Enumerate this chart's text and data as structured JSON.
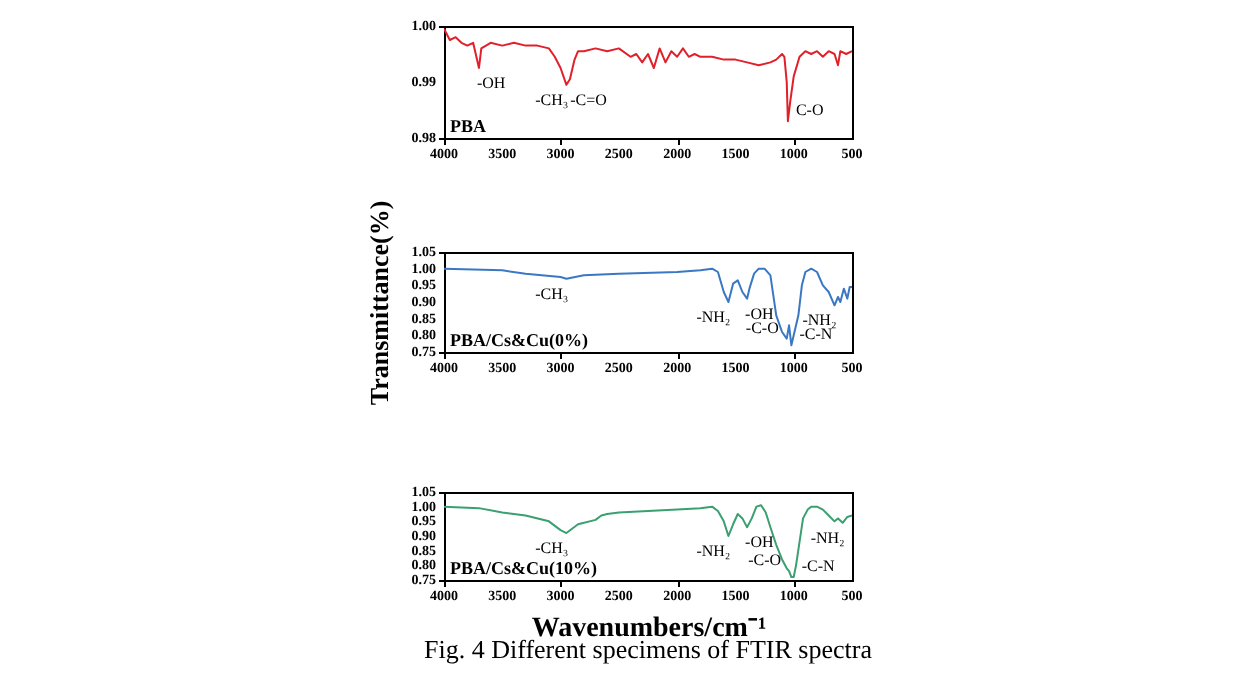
{
  "chart_data": [
    {
      "type": "line",
      "xlim": [
        4000,
        500
      ],
      "xticks": [
        4000,
        3500,
        3000,
        2500,
        2000,
        1500,
        1000,
        500
      ],
      "ylim": [
        0.98,
        1.0
      ],
      "yticks": [
        {
          "value": 0.98,
          "label": "0.98"
        },
        {
          "value": 0.99,
          "label": "0.99"
        },
        {
          "value": 1.0,
          "label": "1.00"
        }
      ],
      "legend": false,
      "grid": false,
      "x": [
        4000,
        3950,
        3900,
        3850,
        3800,
        3750,
        3700,
        3680,
        3600,
        3500,
        3400,
        3300,
        3200,
        3100,
        3050,
        3000,
        2950,
        2920,
        2880,
        2850,
        2800,
        2700,
        2600,
        2500,
        2400,
        2350,
        2300,
        2250,
        2200,
        2150,
        2100,
        2050,
        2000,
        1950,
        1900,
        1850,
        1800,
        1700,
        1600,
        1500,
        1400,
        1300,
        1200,
        1150,
        1100,
        1080,
        1060,
        1050,
        1030,
        1000,
        950,
        900,
        850,
        800,
        750,
        700,
        650,
        620,
        600,
        550,
        500
      ],
      "series": [
        {
          "name": "PBA",
          "color": "#e0202a",
          "values": [
            0.9995,
            0.9975,
            0.998,
            0.997,
            0.9965,
            0.997,
            0.9925,
            0.996,
            0.997,
            0.9965,
            0.997,
            0.9965,
            0.9965,
            0.996,
            0.9945,
            0.9925,
            0.9895,
            0.9905,
            0.994,
            0.9955,
            0.9955,
            0.996,
            0.9955,
            0.996,
            0.9945,
            0.995,
            0.9935,
            0.995,
            0.9925,
            0.996,
            0.9935,
            0.9955,
            0.9945,
            0.996,
            0.9945,
            0.995,
            0.9945,
            0.9945,
            0.994,
            0.994,
            0.9935,
            0.993,
            0.9935,
            0.994,
            0.995,
            0.9945,
            0.99,
            0.983,
            0.9865,
            0.991,
            0.9945,
            0.9955,
            0.995,
            0.9955,
            0.9945,
            0.9955,
            0.995,
            0.993,
            0.9955,
            0.995,
            0.9955
          ]
        }
      ],
      "annotations": [
        {
          "text": "-CH₃",
          "x": 2950,
          "y": 0.9895
        },
        {
          "text": "-C=O",
          "x": 2900,
          "y": 0.9895
        },
        {
          "text": "-OH",
          "x": 3700,
          "y": 0.9925
        },
        {
          "text": "C-O",
          "x": 1050,
          "y": 0.983
        }
      ]
    },
    {
      "type": "line",
      "xlim": [
        4000,
        500
      ],
      "xticks": [
        4000,
        3500,
        3000,
        2500,
        2000,
        1500,
        1000,
        500
      ],
      "ylim": [
        0.75,
        1.05
      ],
      "yticks": [
        {
          "value": 0.75,
          "label": "0.75"
        },
        {
          "value": 0.8,
          "label": "0.80"
        },
        {
          "value": 0.85,
          "label": "0.85"
        },
        {
          "value": 0.9,
          "label": "0.90"
        },
        {
          "value": 0.95,
          "label": "0.95"
        },
        {
          "value": 1.0,
          "label": "1.00"
        },
        {
          "value": 1.05,
          "label": "1.05"
        }
      ],
      "legend": false,
      "grid": false,
      "ylabel": "Transmittance(%)",
      "x": [
        4000,
        3500,
        3300,
        3000,
        2950,
        2800,
        2500,
        2000,
        1800,
        1700,
        1650,
        1600,
        1560,
        1520,
        1480,
        1440,
        1400,
        1380,
        1340,
        1300,
        1250,
        1200,
        1150,
        1100,
        1060,
        1040,
        1020,
        1000,
        960,
        930,
        900,
        850,
        800,
        750,
        700,
        650,
        620,
        600,
        570,
        540,
        520,
        500
      ],
      "series": [
        {
          "name": "PBA/Cs&Cu(0%)",
          "color": "#3a78c4",
          "values": [
            1.0,
            0.995,
            0.985,
            0.975,
            0.97,
            0.98,
            0.985,
            0.99,
            0.995,
            1.0,
            0.99,
            0.93,
            0.9,
            0.955,
            0.965,
            0.93,
            0.91,
            0.94,
            0.985,
            1.0,
            1.0,
            0.98,
            0.86,
            0.81,
            0.79,
            0.83,
            0.77,
            0.8,
            0.86,
            0.95,
            0.99,
            1.0,
            0.99,
            0.95,
            0.93,
            0.89,
            0.915,
            0.9,
            0.94,
            0.91,
            0.945,
            0.945
          ]
        }
      ],
      "annotations": [
        {
          "text": "-NH₂",
          "x": 1560,
          "y": 0.9
        },
        {
          "text": "-OH",
          "x": 1400,
          "y": 0.91
        },
        {
          "text": "-C-O",
          "x": 1060,
          "y": 0.79
        },
        {
          "text": "-C-N",
          "x": 1020,
          "y": 0.77
        },
        {
          "text": "-CH₃",
          "x": 2950,
          "y": 0.97
        },
        {
          "text": "-NH₂",
          "x": 650,
          "y": 0.89
        }
      ]
    },
    {
      "type": "line",
      "xlim": [
        4000,
        500
      ],
      "xticks": [
        4000,
        3500,
        3000,
        2500,
        2000,
        1500,
        1000,
        500
      ],
      "ylim": [
        0.75,
        1.05
      ],
      "yticks": [
        {
          "value": 0.75,
          "label": "0.75"
        },
        {
          "value": 0.8,
          "label": "0.80"
        },
        {
          "value": 0.85,
          "label": "0.85"
        },
        {
          "value": 0.9,
          "label": "0.90"
        },
        {
          "value": 0.95,
          "label": "0.95"
        },
        {
          "value": 1.0,
          "label": "1.00"
        },
        {
          "value": 1.05,
          "label": "1.05"
        }
      ],
      "legend": false,
      "grid": false,
      "xlabel": "Wavenumbers/cm⁻¹",
      "x": [
        4000,
        3700,
        3500,
        3300,
        3100,
        3000,
        2950,
        2850,
        2700,
        2650,
        2600,
        2500,
        2000,
        1800,
        1700,
        1650,
        1600,
        1560,
        1520,
        1480,
        1440,
        1400,
        1360,
        1320,
        1280,
        1240,
        1200,
        1150,
        1100,
        1060,
        1040,
        1020,
        1000,
        980,
        950,
        920,
        880,
        850,
        800,
        750,
        700,
        650,
        620,
        580,
        540,
        500
      ],
      "series": [
        {
          "name": "PBA/Cs&Cu(10%)",
          "color": "#3aa070",
          "values": [
            1.0,
            0.995,
            0.98,
            0.97,
            0.95,
            0.92,
            0.91,
            0.94,
            0.955,
            0.97,
            0.975,
            0.98,
            0.99,
            0.995,
            1.0,
            0.985,
            0.95,
            0.9,
            0.94,
            0.975,
            0.96,
            0.93,
            0.96,
            1.0,
            1.005,
            0.98,
            0.93,
            0.87,
            0.82,
            0.79,
            0.78,
            0.76,
            0.76,
            0.8,
            0.88,
            0.96,
            0.99,
            1.0,
            1.0,
            0.99,
            0.97,
            0.95,
            0.96,
            0.945,
            0.965,
            0.97
          ]
        }
      ],
      "annotations": [
        {
          "text": "-NH₂",
          "x": 1560,
          "y": 0.9
        },
        {
          "text": "-OH",
          "x": 1400,
          "y": 0.93
        },
        {
          "text": "-C-O",
          "x": 1040,
          "y": 0.78
        },
        {
          "text": "-C-N",
          "x": 1000,
          "y": 0.76
        },
        {
          "text": "-CH₃",
          "x": 2950,
          "y": 0.91
        },
        {
          "text": "-NH₂",
          "x": 580,
          "y": 0.945
        },
        "Fig. 4 Different specimens of FTIR spectra"
      ]
    }
  ]
}
